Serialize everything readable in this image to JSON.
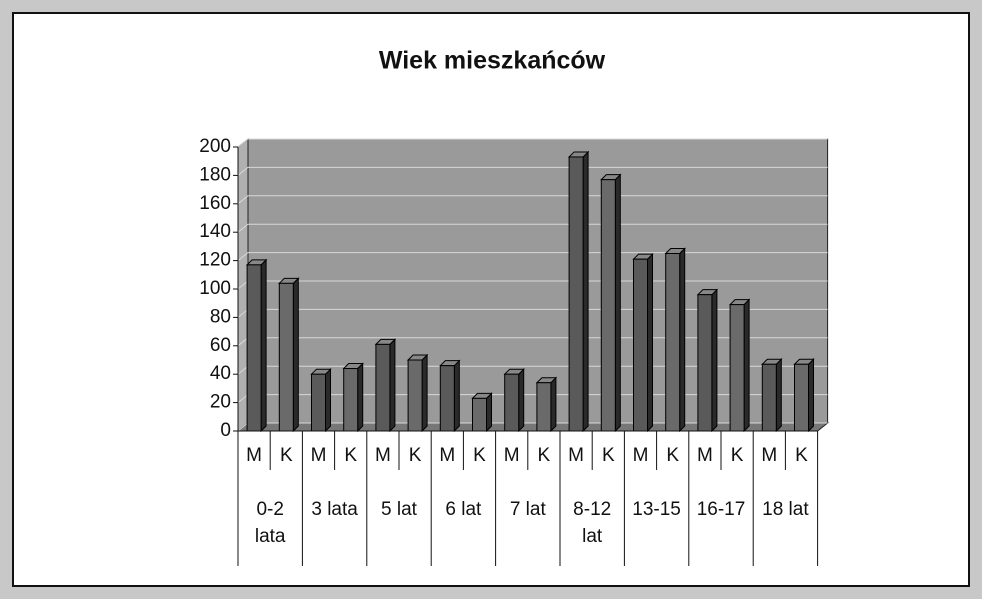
{
  "chart_data": {
    "type": "bar",
    "title": "Wiek mieszkańców",
    "categories": [
      "0-2 lata",
      "3 lata",
      "5 lat",
      "6 lat",
      "7 lat",
      "8-12 lat",
      "13-15",
      "16-17",
      "18 lat"
    ],
    "series": [
      {
        "name": "M",
        "color": "#5a5a5a",
        "values": [
          117,
          40,
          61,
          46,
          40,
          193,
          121,
          96,
          47
        ]
      },
      {
        "name": "K",
        "color": "#6a6a6a",
        "values": [
          104,
          44,
          50,
          23,
          34,
          177,
          125,
          89,
          47
        ]
      }
    ],
    "ylim": [
      0,
      200
    ],
    "yticks": [
      0,
      20,
      40,
      60,
      80,
      100,
      120,
      140,
      160,
      180,
      200
    ],
    "grid": true
  }
}
